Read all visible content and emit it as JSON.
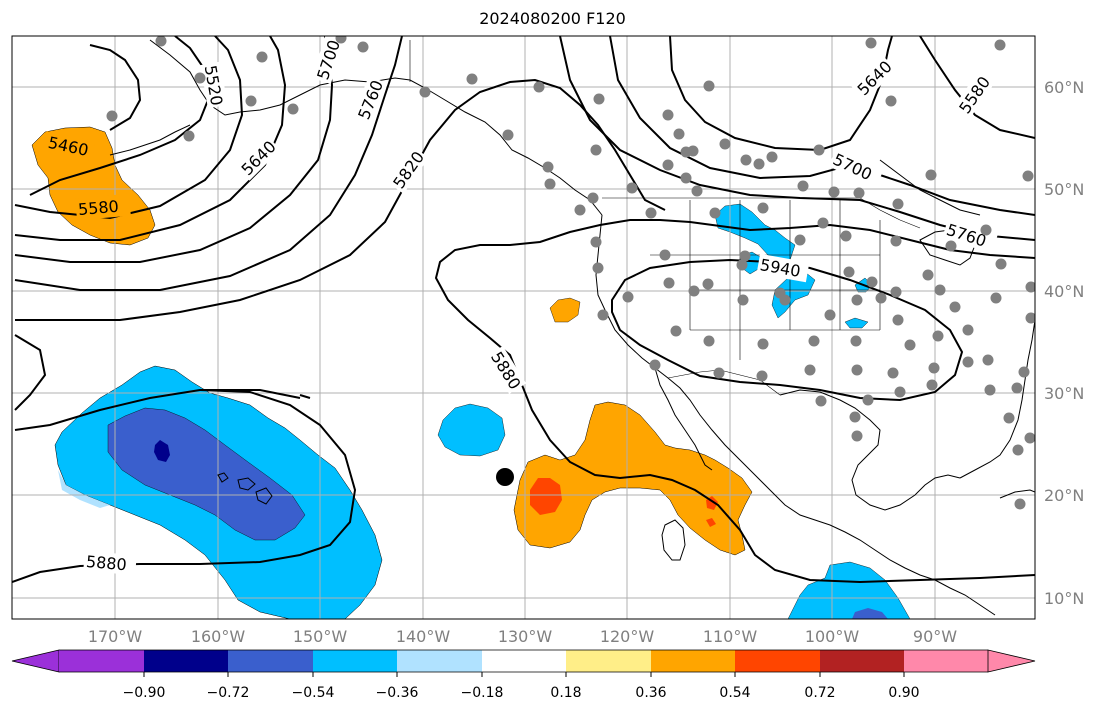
{
  "title": "2024080200 F120",
  "lat_labels": [
    "60°N",
    "50°N",
    "40°N",
    "30°N",
    "20°N",
    "10°N"
  ],
  "lon_labels": [
    "170°W",
    "160°W",
    "150°W",
    "140°W",
    "130°W",
    "120°W",
    "110°W",
    "100°W",
    "90°W"
  ],
  "contour_labels": [
    "5460",
    "5520",
    "5580",
    "5640",
    "5700",
    "5760",
    "5820",
    "5880",
    "5880",
    "5940",
    "5640",
    "5580",
    "5700",
    "5760"
  ],
  "colorbar": {
    "tick_labels": [
      "−0.90",
      "−0.72",
      "−0.54",
      "−0.36",
      "−0.18",
      "0.18",
      "0.36",
      "0.54",
      "0.72",
      "0.90"
    ],
    "colors": [
      "#9b30d9",
      "#00008b",
      "#3a5fcd",
      "#00bfff",
      "#b0e2ff",
      "#ffffff",
      "#ffee88",
      "#ffa500",
      "#ff4500",
      "#b22222",
      "#ff88aa"
    ]
  },
  "colors": {
    "orange": "#ffa500",
    "red_orange": "#ff4500",
    "deep_sky_blue": "#00bfff",
    "royal_blue": "#3a5fcd",
    "navy": "#00008b",
    "station_gray": "#808080",
    "grid_gray": "#b0b0b0"
  }
}
